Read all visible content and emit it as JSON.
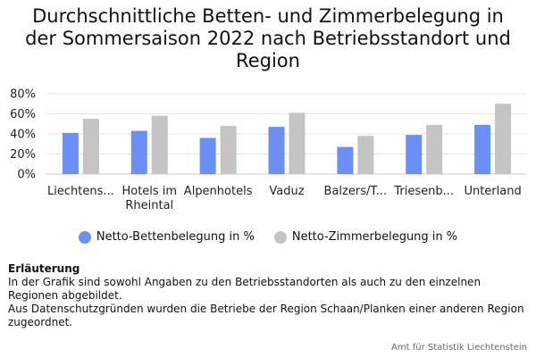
{
  "title_lines": [
    "Durchschnittliche Betten- und Zimmerbelegung in",
    "der Sommersaison 2022 nach Betriebsstandort und",
    "Region"
  ],
  "colors": {
    "series1": "#6b8ff7",
    "series2": "#c4c4c4",
    "grid": "#e6e6e6"
  },
  "chart_data": {
    "type": "bar",
    "title": "Durchschnittliche Betten- und Zimmerbelegung in der Sommersaison 2022 nach Betriebsstandort und Region",
    "categories": [
      "Liechtens...",
      "Hotels im Rheintal",
      "Alpenhotels",
      "Vaduz",
      "Balzers/T...",
      "Triesenb...",
      "Unterland"
    ],
    "category_lines": [
      [
        "Liechtens..."
      ],
      [
        "Hotels im",
        "Rheintal"
      ],
      [
        "Alpenhotels"
      ],
      [
        "Vaduz"
      ],
      [
        "Balzers/T..."
      ],
      [
        "Triesenb..."
      ],
      [
        "Unterland"
      ]
    ],
    "series": [
      {
        "name": "Netto-Bettenbelegung in %",
        "values": [
          41,
          43,
          36,
          47,
          27,
          39,
          49
        ]
      },
      {
        "name": "Netto-Zimmerbelegung in %",
        "values": [
          55,
          58,
          48,
          61,
          38,
          49,
          70
        ]
      }
    ],
    "ylim": [
      0,
      80
    ],
    "yticks": [
      "0%",
      "20%",
      "40%",
      "60%",
      "80%"
    ],
    "grid": true,
    "legend_position": "bottom"
  },
  "notes": {
    "heading": "Erläuterung",
    "lines": [
      "In der Grafik sind sowohl Angaben zu den Betriebsstandorten als auch zu den einzelnen Regionen abgebildet.",
      "Aus Datenschutzgründen wurden die Betriebe der Region Schaan/Planken einer anderen Region zugeordnet."
    ]
  },
  "footer": "Amt für Statistik Liechtenstein"
}
